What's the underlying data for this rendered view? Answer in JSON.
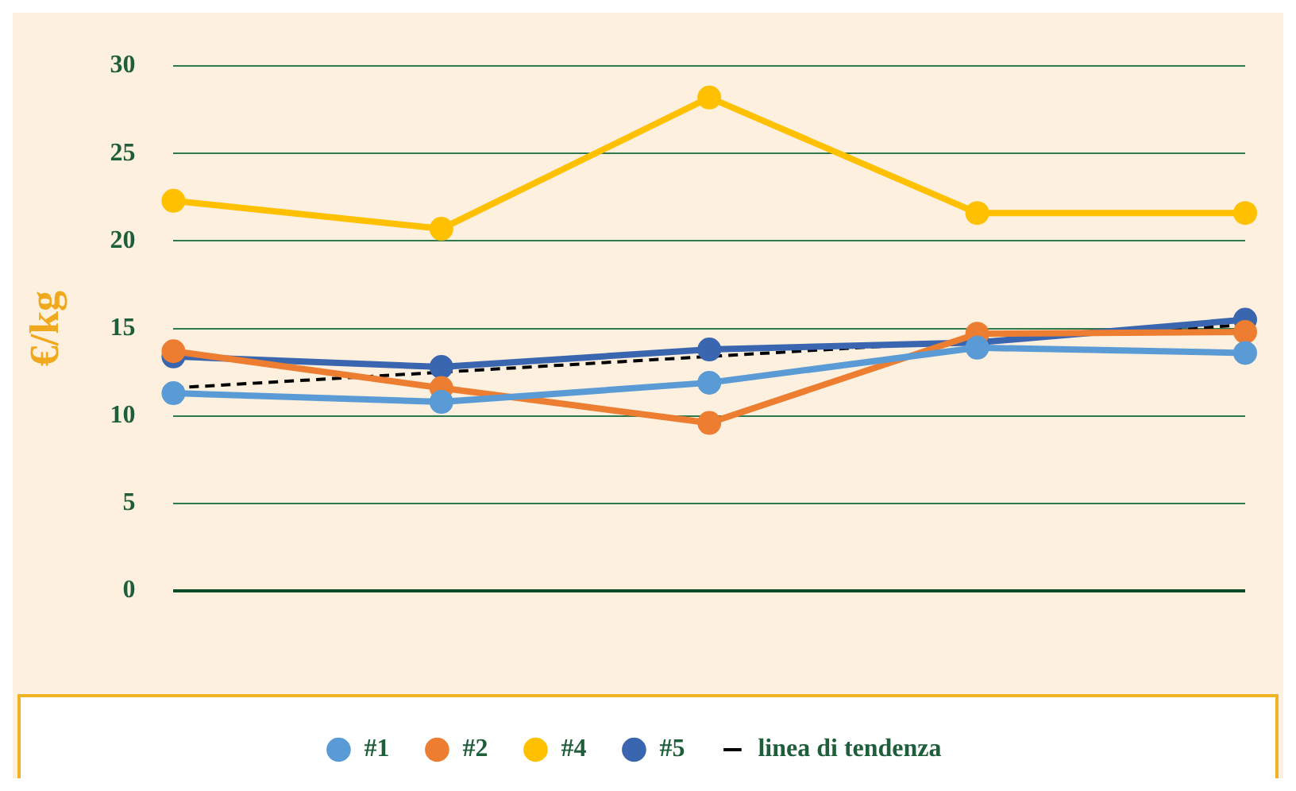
{
  "chart_data": {
    "type": "line",
    "ylabel": "€/kg",
    "categories": [
      null,
      null,
      null,
      null,
      null
    ],
    "ylim": [
      0,
      30
    ],
    "yticks": [
      0,
      5,
      10,
      15,
      20,
      25,
      30
    ],
    "tick_labels": "y",
    "grid": "y",
    "legend": "bottom",
    "marker": "circle",
    "series": [
      {
        "name": "#1",
        "color": "#5b9bd5",
        "values": [
          11.3,
          10.8,
          11.9,
          13.9,
          13.6
        ]
      },
      {
        "name": "#2",
        "color": "#ed7d31",
        "values": [
          13.7,
          11.6,
          9.6,
          14.7,
          14.8
        ]
      },
      {
        "name": "#4",
        "color": "#ffc000",
        "values": [
          22.3,
          20.7,
          28.2,
          21.6,
          21.6
        ]
      },
      {
        "name": "#5",
        "color": "#3a66b0",
        "values": [
          13.4,
          12.8,
          13.8,
          14.2,
          15.5
        ]
      },
      {
        "name": "linea di tendenza",
        "type": "line",
        "color": "#000000",
        "line_style": "dashed",
        "marker": "none",
        "values": [
          11.6,
          12.5,
          13.4,
          14.3,
          15.2
        ]
      }
    ]
  }
}
